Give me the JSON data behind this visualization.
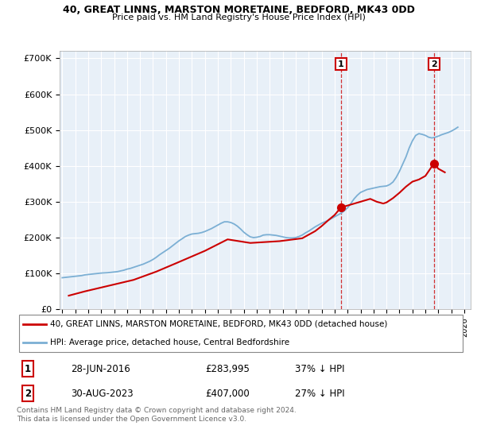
{
  "title1": "40, GREAT LINNS, MARSTON MORETAINE, BEDFORD, MK43 0DD",
  "title2": "Price paid vs. HM Land Registry's House Price Index (HPI)",
  "ylabel_ticks": [
    "£0",
    "£100K",
    "£200K",
    "£300K",
    "£400K",
    "£500K",
    "£600K",
    "£700K"
  ],
  "ytick_values": [
    0,
    100000,
    200000,
    300000,
    400000,
    500000,
    600000,
    700000
  ],
  "ylim_max": 720000,
  "xlim_start": 1994.8,
  "xlim_end": 2026.5,
  "hpi_color": "#7bafd4",
  "price_color": "#cc0000",
  "bg_color": "#ddeeff",
  "marker1_price": 283995,
  "marker1_x": 2016.49,
  "marker2_price": 407000,
  "marker2_x": 2023.66,
  "legend_line1": "40, GREAT LINNS, MARSTON MORETAINE, BEDFORD, MK43 0DD (detached house)",
  "legend_line2": "HPI: Average price, detached house, Central Bedfordshire",
  "table_row1": [
    "1",
    "28-JUN-2016",
    "£283,995",
    "37% ↓ HPI"
  ],
  "table_row2": [
    "2",
    "30-AUG-2023",
    "£407,000",
    "27% ↓ HPI"
  ],
  "footnote": "Contains HM Land Registry data © Crown copyright and database right 2024.\nThis data is licensed under the Open Government Licence v3.0.",
  "hpi_x": [
    1995.0,
    1995.25,
    1995.5,
    1995.75,
    1996.0,
    1996.25,
    1996.5,
    1996.75,
    1997.0,
    1997.25,
    1997.5,
    1997.75,
    1998.0,
    1998.25,
    1998.5,
    1998.75,
    1999.0,
    1999.25,
    1999.5,
    1999.75,
    2000.0,
    2000.25,
    2000.5,
    2000.75,
    2001.0,
    2001.25,
    2001.5,
    2001.75,
    2002.0,
    2002.25,
    2002.5,
    2002.75,
    2003.0,
    2003.25,
    2003.5,
    2003.75,
    2004.0,
    2004.25,
    2004.5,
    2004.75,
    2005.0,
    2005.25,
    2005.5,
    2005.75,
    2006.0,
    2006.25,
    2006.5,
    2006.75,
    2007.0,
    2007.25,
    2007.5,
    2007.75,
    2008.0,
    2008.25,
    2008.5,
    2008.75,
    2009.0,
    2009.25,
    2009.5,
    2009.75,
    2010.0,
    2010.25,
    2010.5,
    2010.75,
    2011.0,
    2011.25,
    2011.5,
    2011.75,
    2012.0,
    2012.25,
    2012.5,
    2012.75,
    2013.0,
    2013.25,
    2013.5,
    2013.75,
    2014.0,
    2014.25,
    2014.5,
    2014.75,
    2015.0,
    2015.25,
    2015.5,
    2015.75,
    2016.0,
    2016.25,
    2016.5,
    2016.75,
    2017.0,
    2017.25,
    2017.5,
    2017.75,
    2018.0,
    2018.25,
    2018.5,
    2018.75,
    2019.0,
    2019.25,
    2019.5,
    2019.75,
    2020.0,
    2020.25,
    2020.5,
    2020.75,
    2021.0,
    2021.25,
    2021.5,
    2021.75,
    2022.0,
    2022.25,
    2022.5,
    2022.75,
    2023.0,
    2023.25,
    2023.5,
    2023.75,
    2024.0,
    2024.25,
    2024.5,
    2024.75,
    2025.0,
    2025.25,
    2025.5
  ],
  "hpi_y": [
    88000,
    89000,
    90000,
    91000,
    92000,
    93000,
    94000,
    96000,
    97000,
    98000,
    99000,
    100000,
    101000,
    101500,
    102000,
    103000,
    104000,
    105000,
    107000,
    109000,
    112000,
    114000,
    117000,
    120000,
    123000,
    126000,
    130000,
    134000,
    139000,
    145000,
    152000,
    158000,
    164000,
    170000,
    177000,
    184000,
    191000,
    197000,
    203000,
    207000,
    210000,
    211000,
    212000,
    214000,
    217000,
    221000,
    225000,
    230000,
    235000,
    240000,
    244000,
    244000,
    242000,
    238000,
    232000,
    224000,
    215000,
    208000,
    202000,
    200000,
    201000,
    203000,
    207000,
    208000,
    208000,
    207000,
    206000,
    204000,
    202000,
    200000,
    199000,
    199000,
    200000,
    203000,
    207000,
    213000,
    218000,
    224000,
    230000,
    235000,
    240000,
    244000,
    248000,
    253000,
    258000,
    263000,
    268000,
    275000,
    283000,
    295000,
    308000,
    318000,
    326000,
    330000,
    334000,
    336000,
    338000,
    340000,
    342000,
    343000,
    344000,
    348000,
    355000,
    368000,
    385000,
    405000,
    425000,
    450000,
    470000,
    485000,
    490000,
    488000,
    485000,
    480000,
    478000,
    480000,
    483000,
    487000,
    490000,
    493000,
    497000,
    502000,
    508000
  ],
  "price_x": [
    1995.5,
    1996.75,
    2000.5,
    2002.25,
    2003.75,
    2006.0,
    2007.75,
    2009.5,
    2011.75,
    2013.5,
    2014.5,
    2015.0,
    2015.5,
    2016.0,
    2016.49,
    2018.75,
    2019.25,
    2019.75,
    2020.0,
    2020.5,
    2021.0,
    2021.5,
    2022.0,
    2022.5,
    2023.0,
    2023.66,
    2024.0,
    2024.5
  ],
  "price_y": [
    38000,
    50000,
    82000,
    105000,
    128000,
    163000,
    195000,
    185000,
    190000,
    198000,
    218000,
    232000,
    248000,
    263000,
    283995,
    308000,
    300000,
    295000,
    298000,
    310000,
    325000,
    342000,
    356000,
    362000,
    372000,
    407000,
    392000,
    382000
  ]
}
